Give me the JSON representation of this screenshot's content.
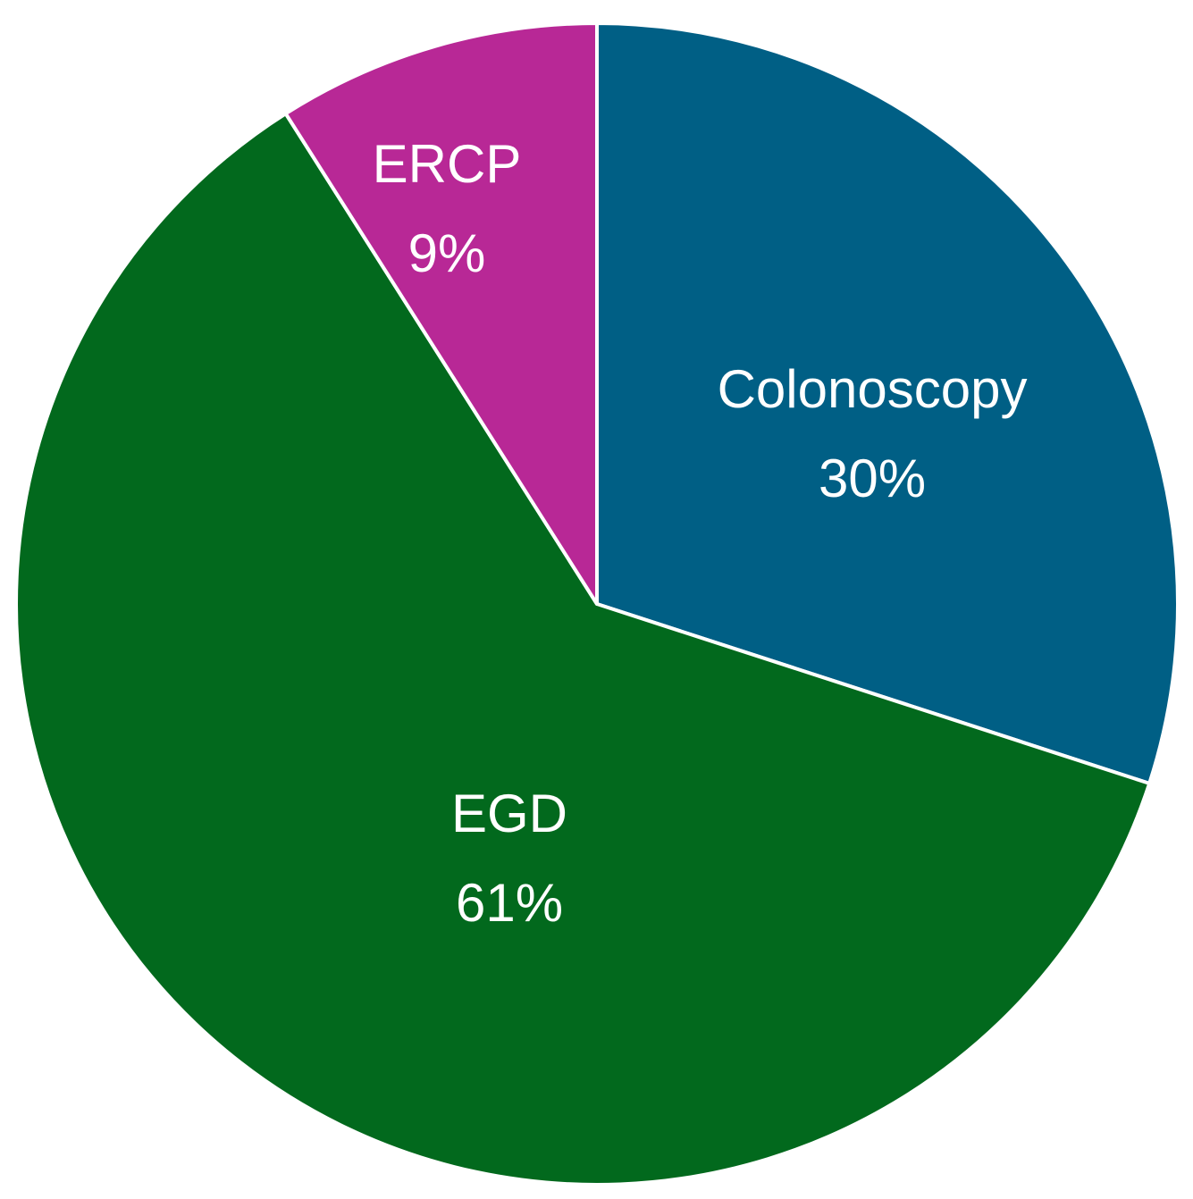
{
  "chart_data": {
    "type": "pie",
    "start_angle_deg": 0,
    "direction": "clockwise",
    "slices": [
      {
        "label": "Colonoscopy",
        "value": 30,
        "value_label": "30%",
        "color": "#005f85"
      },
      {
        "label": "EGD",
        "value": 61,
        "value_label": "61%",
        "color": "#02691d"
      },
      {
        "label": "ERCP",
        "value": 9,
        "value_label": "9%",
        "color": "#b82896"
      }
    ]
  }
}
